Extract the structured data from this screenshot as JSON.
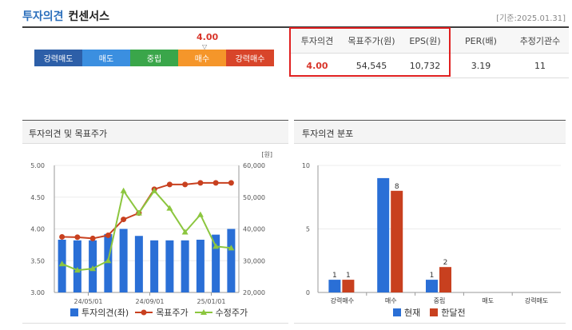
{
  "header": {
    "title_primary": "투자의견",
    "title_secondary": "컨센서스",
    "date": "[기준:2025.01.31]"
  },
  "opinion_scale": {
    "current_value": "4.00",
    "segments": [
      {
        "label": "강력매도",
        "color": "#2d5fa8"
      },
      {
        "label": "매도",
        "color": "#3b8fe0"
      },
      {
        "label": "중립",
        "color": "#3aa64a"
      },
      {
        "label": "매수",
        "color": "#f5962a"
      },
      {
        "label": "강력매수",
        "color": "#d8452a"
      }
    ],
    "marker_segment": 3
  },
  "summary_table": {
    "headers": [
      "투자의견",
      "목표주가(원)",
      "EPS(원)",
      "PER(배)",
      "추정기관수"
    ],
    "values": [
      "4.00",
      "54,545",
      "10,732",
      "3.19",
      "11"
    ]
  },
  "left_panel": {
    "title": "투자의견 및 목표주가",
    "y_left_ticks": [
      "5.00",
      "4.50",
      "4.00",
      "3.50",
      "3.00"
    ],
    "y_right_ticks": [
      "60,000",
      "50,000",
      "40,000",
      "30,000",
      "20,000"
    ],
    "y_right_unit": "[원]",
    "x_ticks": [
      "24/05/01",
      "24/09/01",
      "25/01/01"
    ],
    "legend": [
      "투자의견(좌)",
      "목표주가",
      "수정주가"
    ]
  },
  "right_panel": {
    "title": "투자의견 분포",
    "legend": [
      "현재",
      "한달전"
    ]
  },
  "chart_data": [
    {
      "type": "bar",
      "title": "투자의견 및 목표주가",
      "x_ticks": [
        "24/05/01",
        "24/09/01",
        "25/01/01"
      ],
      "ylim_left": [
        3.0,
        5.0
      ],
      "ylim_right": [
        20000,
        60000
      ],
      "series": [
        {
          "name": "투자의견(좌)",
          "type": "bar",
          "axis": "left",
          "color": "#2a6fd6",
          "values": [
            3.83,
            3.82,
            3.82,
            3.92,
            4.0,
            3.89,
            3.82,
            3.82,
            3.82,
            3.83,
            3.91,
            4.0
          ]
        },
        {
          "name": "목표주가",
          "type": "line",
          "axis": "right",
          "color": "#c8401f",
          "values": [
            37500,
            37400,
            37000,
            38000,
            43000,
            45000,
            52500,
            54000,
            54000,
            54500,
            54500,
            54500
          ]
        },
        {
          "name": "수정주가",
          "type": "line",
          "axis": "right",
          "color": "#8cc63f",
          "values": [
            29000,
            27000,
            27500,
            30000,
            52000,
            45000,
            52000,
            46500,
            39000,
            44500,
            34500,
            34000
          ]
        }
      ]
    },
    {
      "type": "bar",
      "title": "투자의견 분포",
      "categories": [
        "강력매수",
        "매수",
        "중립",
        "매도",
        "강력매도"
      ],
      "ylim": [
        0,
        10
      ],
      "y_ticks": [
        0,
        5,
        10
      ],
      "series": [
        {
          "name": "현재",
          "color": "#2a6fd6",
          "values": [
            1,
            null,
            1,
            null,
            null
          ]
        },
        {
          "name": "한달전",
          "color": "#c8401f",
          "values": [
            1,
            8,
            2,
            null,
            null
          ]
        }
      ],
      "current_bar_buy_value": 9
    }
  ]
}
